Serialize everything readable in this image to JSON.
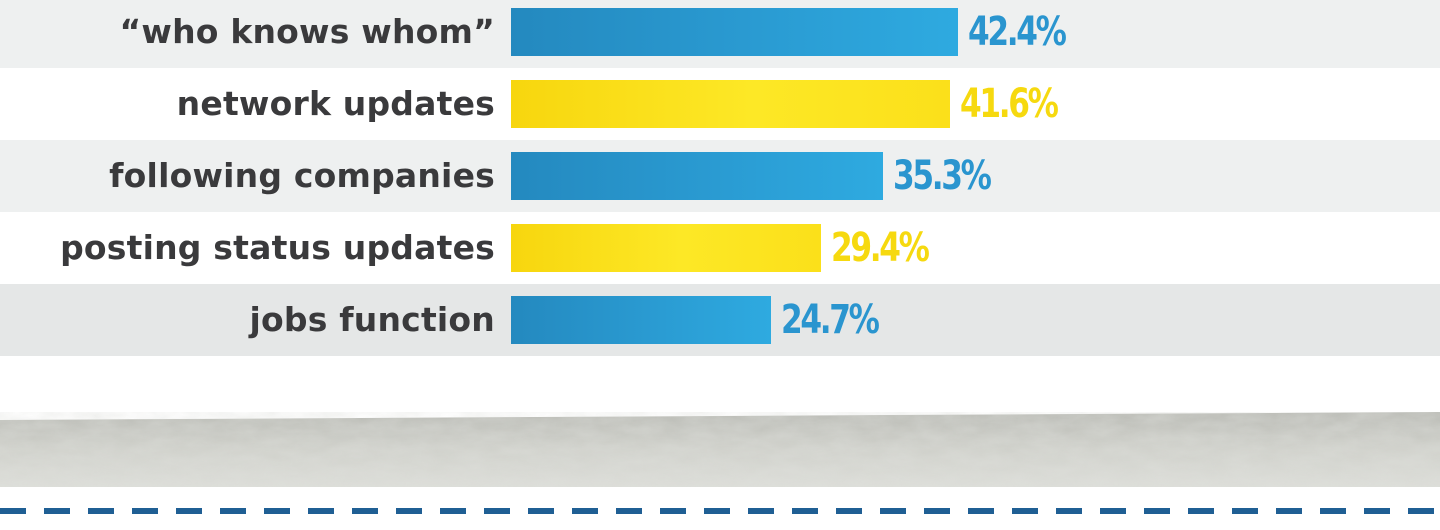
{
  "chart_data": {
    "type": "bar",
    "orientation": "horizontal",
    "categories": [
      "“who knows whom”",
      "network updates",
      "following companies",
      "posting status updates",
      "jobs function"
    ],
    "values": [
      42.4,
      41.6,
      35.3,
      29.4,
      24.7
    ],
    "value_labels": [
      "42.4%",
      "41.6%",
      "35.3%",
      "29.4%",
      "24.7%"
    ],
    "bar_colors": [
      "blue",
      "yellow",
      "blue",
      "yellow",
      "blue"
    ],
    "xlim": [
      0,
      60
    ],
    "grid": false
  },
  "colors": {
    "blue": "#2a95cf",
    "yellow": "#f6d90f",
    "label_text": "#3a3a3c",
    "dash_line": "#1f5f94",
    "texture": "#c8c9c3"
  }
}
